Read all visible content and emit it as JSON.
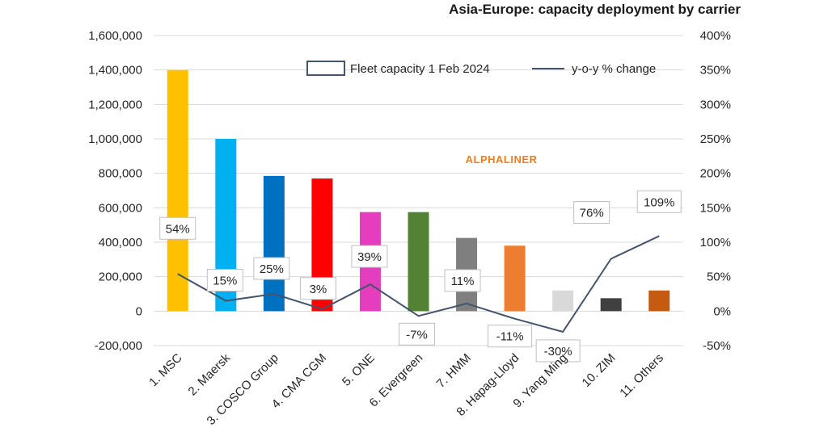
{
  "chart_data": {
    "type": "bar",
    "title": "Asia-Europe: capacity deployment by carrier",
    "watermark": "ALPHALINER",
    "categories": [
      "1. MSC",
      "2. Maersk",
      "3. COSCO Group",
      "4. CMA CGM",
      "5. ONE",
      "6. Evergreen",
      "7. HMM",
      "8. Hapag-Lloyd",
      "9. Yang Ming",
      "10. ZIM",
      "11. Others"
    ],
    "series": [
      {
        "name": "Fleet capacity 1 Feb 2024",
        "type": "bar",
        "axis": "left",
        "values": [
          1400000,
          1000000,
          785000,
          770000,
          575000,
          575000,
          425000,
          380000,
          120000,
          75000,
          120000
        ],
        "colors": [
          "#ffc000",
          "#00b0f0",
          "#0070c0",
          "#ff0000",
          "#e63cbe",
          "#548235",
          "#7f7f7f",
          "#ed7d31",
          "#d9d9d9",
          "#404040",
          "#c55a11"
        ]
      },
      {
        "name": "y-o-y % change",
        "type": "line",
        "axis": "right",
        "values": [
          54,
          15,
          25,
          3,
          39,
          -7,
          11,
          -11,
          -30,
          76,
          109
        ],
        "labels": [
          "54%",
          "15%",
          "25%",
          "3%",
          "39%",
          "-7%",
          "11%",
          "-11%",
          "-30%",
          "76%",
          "109%"
        ],
        "color": "#44546a"
      }
    ],
    "yLeft": {
      "min": -200000,
      "max": 1600000,
      "ticks": [
        1600000,
        1400000,
        1200000,
        1000000,
        800000,
        600000,
        400000,
        200000,
        0,
        -200000
      ],
      "tick_labels": [
        "1,600,000",
        "1,400,000",
        "1,200,000",
        "1,000,000",
        "800,000",
        "600,000",
        "400,000",
        "200,000",
        "0",
        "-200,000"
      ]
    },
    "yRight": {
      "min": -50,
      "max": 400,
      "ticks": [
        400,
        350,
        300,
        250,
        200,
        150,
        100,
        50,
        0,
        -50
      ],
      "tick_labels": [
        "400%",
        "350%",
        "300%",
        "250%",
        "200%",
        "150%",
        "100%",
        "50%",
        "0%",
        "-50%"
      ]
    },
    "grid": true,
    "legend_position": "top-right"
  }
}
